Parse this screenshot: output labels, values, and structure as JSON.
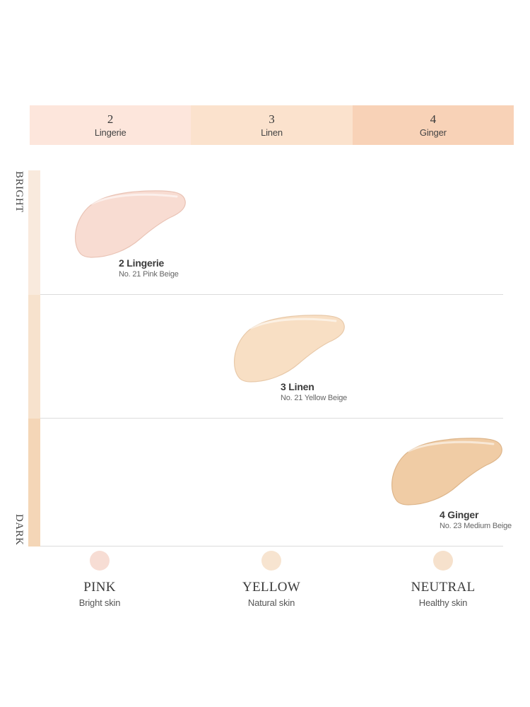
{
  "header": {
    "cells": [
      {
        "number": "2",
        "name": "Lingerie",
        "color": "#fde6dc"
      },
      {
        "number": "3",
        "name": "Linen",
        "color": "#fbe2cd"
      },
      {
        "number": "4",
        "name": "Ginger",
        "color": "#f8d2b7"
      }
    ]
  },
  "axis": {
    "top_label": "BRIGHT",
    "bottom_label": "DARK",
    "bar_colors": [
      "#f9eadd",
      "#f7e2cd",
      "#f4d6b7"
    ]
  },
  "shades": [
    {
      "title": "2 Lingerie",
      "subtitle": "No. 21 Pink Beige",
      "color": "#f8dcd2",
      "edge": "#e9c3b5"
    },
    {
      "title": "3 Linen",
      "subtitle": "No. 21 Yellow Beige",
      "color": "#f8dfc4",
      "edge": "#e8c9a9"
    },
    {
      "title": "4 Ginger",
      "subtitle": "No. 23 Medium Beige",
      "color": "#f0cca5",
      "edge": "#ddb58a"
    }
  ],
  "tones": [
    {
      "name": "PINK",
      "desc": "Bright skin",
      "color": "#f7ddd4"
    },
    {
      "name": "YELLOW",
      "desc": "Natural skin",
      "color": "#f7e4d0"
    },
    {
      "name": "NEUTRAL",
      "desc": "Healthy skin",
      "color": "#f6e1cc"
    }
  ]
}
